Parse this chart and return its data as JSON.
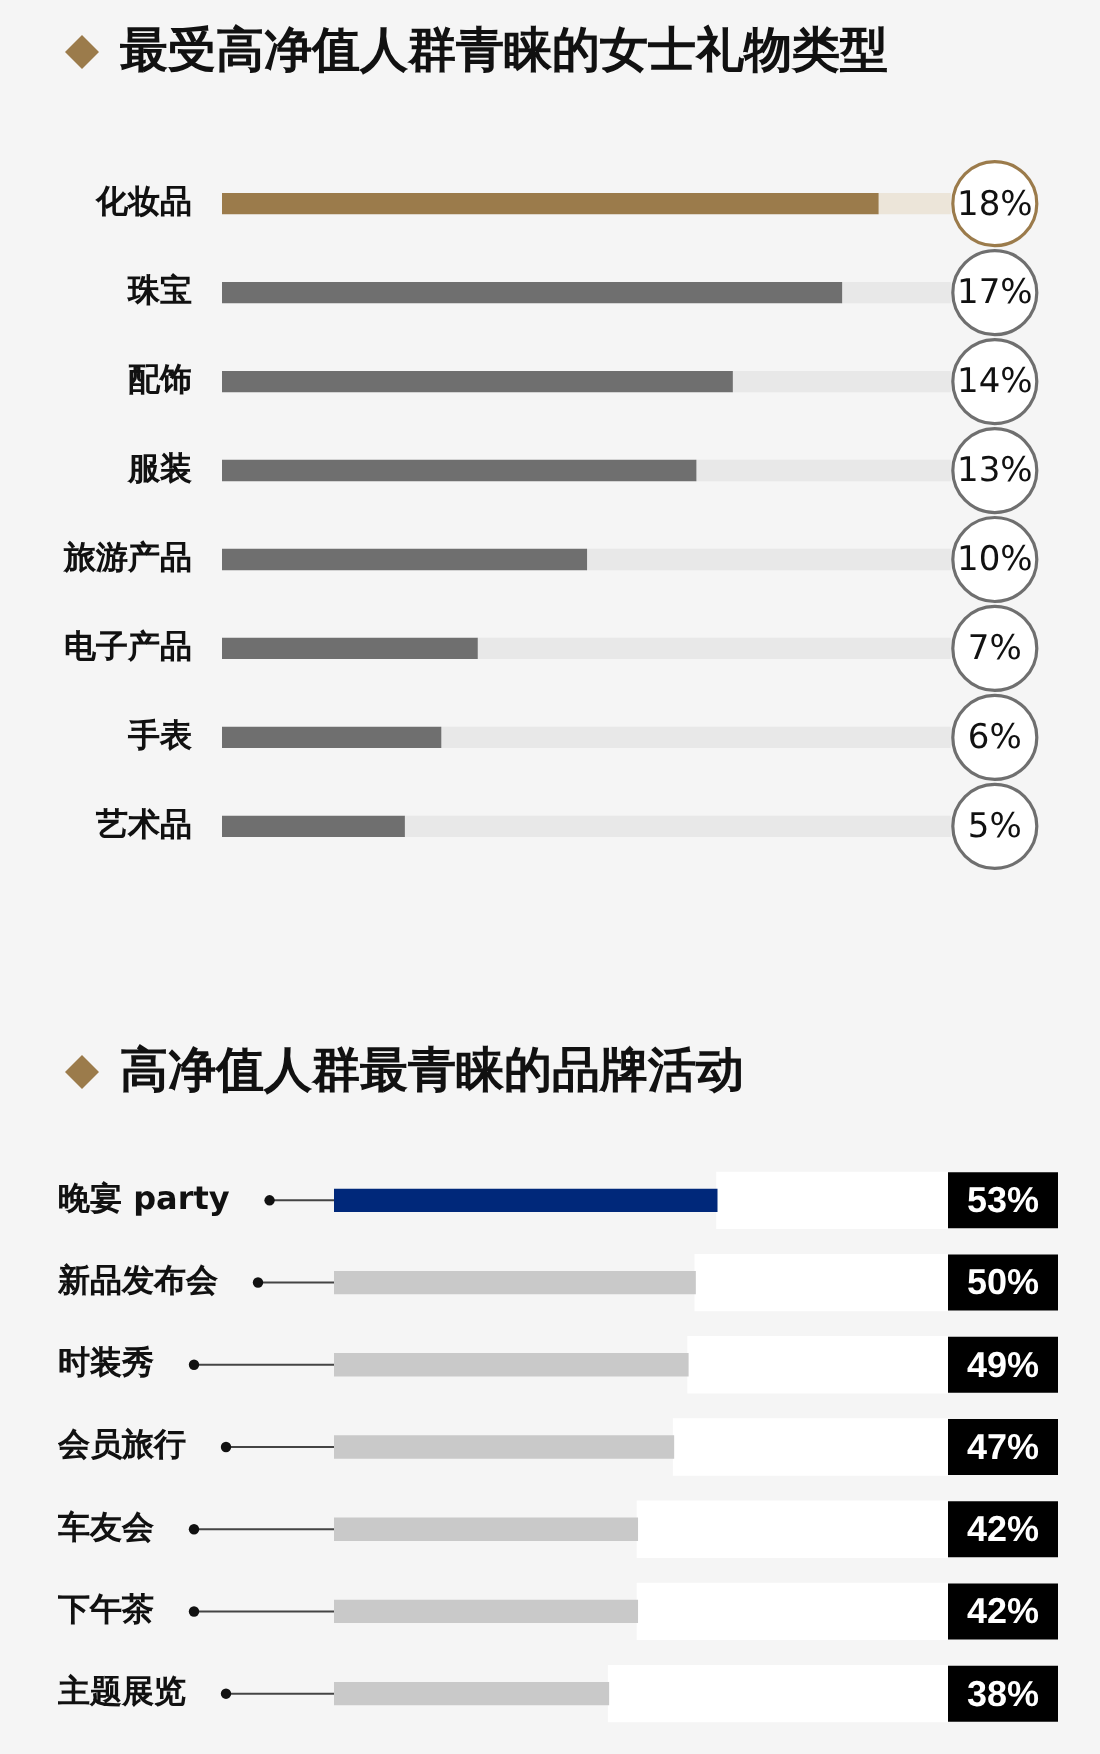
{
  "chart_data": [
    {
      "type": "bar",
      "orientation": "horizontal",
      "stacked": true,
      "title": "最受高净值人群青睐的女士礼物类型",
      "categories": [
        "化妆品",
        "珠宝",
        "配饰",
        "服装",
        "旅游产品",
        "电子产品",
        "手表",
        "艺术品"
      ],
      "series": [
        {
          "values": [
            18,
            17,
            14,
            13,
            10,
            7,
            6,
            5
          ],
          "colors": [
            "#9b7b4b",
            "#6f6f6f",
            "#6f6f6f",
            "#6f6f6f",
            "#6f6f6f",
            "#6f6f6f",
            "#6f6f6f",
            "#6f6f6f"
          ],
          "value_labels": [
            "18%",
            "17%",
            "14%",
            "13%",
            "10%",
            "7%",
            "6%",
            "5%"
          ]
        },
        {
          "values": [
            2,
            3,
            6,
            7,
            10,
            13,
            14,
            15
          ],
          "colors": [
            "#ece5d9",
            "#e8e8e8",
            "#e8e8e8",
            "#e8e8e8",
            "#e8e8e8",
            "#e8e8e8",
            "#e8e8e8",
            "#e8e8e8"
          ]
        }
      ],
      "tick_labels": "y"
    },
    {
      "type": "bar",
      "orientation": "horizontal",
      "stacked": true,
      "title": "高净值人群最青睐的品牌活动",
      "categories": [
        "晚宴 party",
        "新品发布会",
        "时装秀",
        "会员旅行",
        "车友会",
        "下午茶",
        "主题展览"
      ],
      "series": [
        {
          "values": [
            53,
            50,
            49,
            47,
            42,
            42,
            38
          ],
          "colors": [
            "#00287a",
            "#c9c9c9",
            "#c9c9c9",
            "#c9c9c9",
            "#c9c9c9",
            "#c9c9c9",
            "#c9c9c9"
          ],
          "value_labels": [
            "53%",
            "50%",
            "49%",
            "47%",
            "42%",
            "42%",
            "38%"
          ]
        },
        {
          "values": [
            32,
            35,
            36,
            38,
            43,
            43,
            47
          ],
          "color": "#ffffff"
        }
      ],
      "tick_labels": "y"
    }
  ]
}
